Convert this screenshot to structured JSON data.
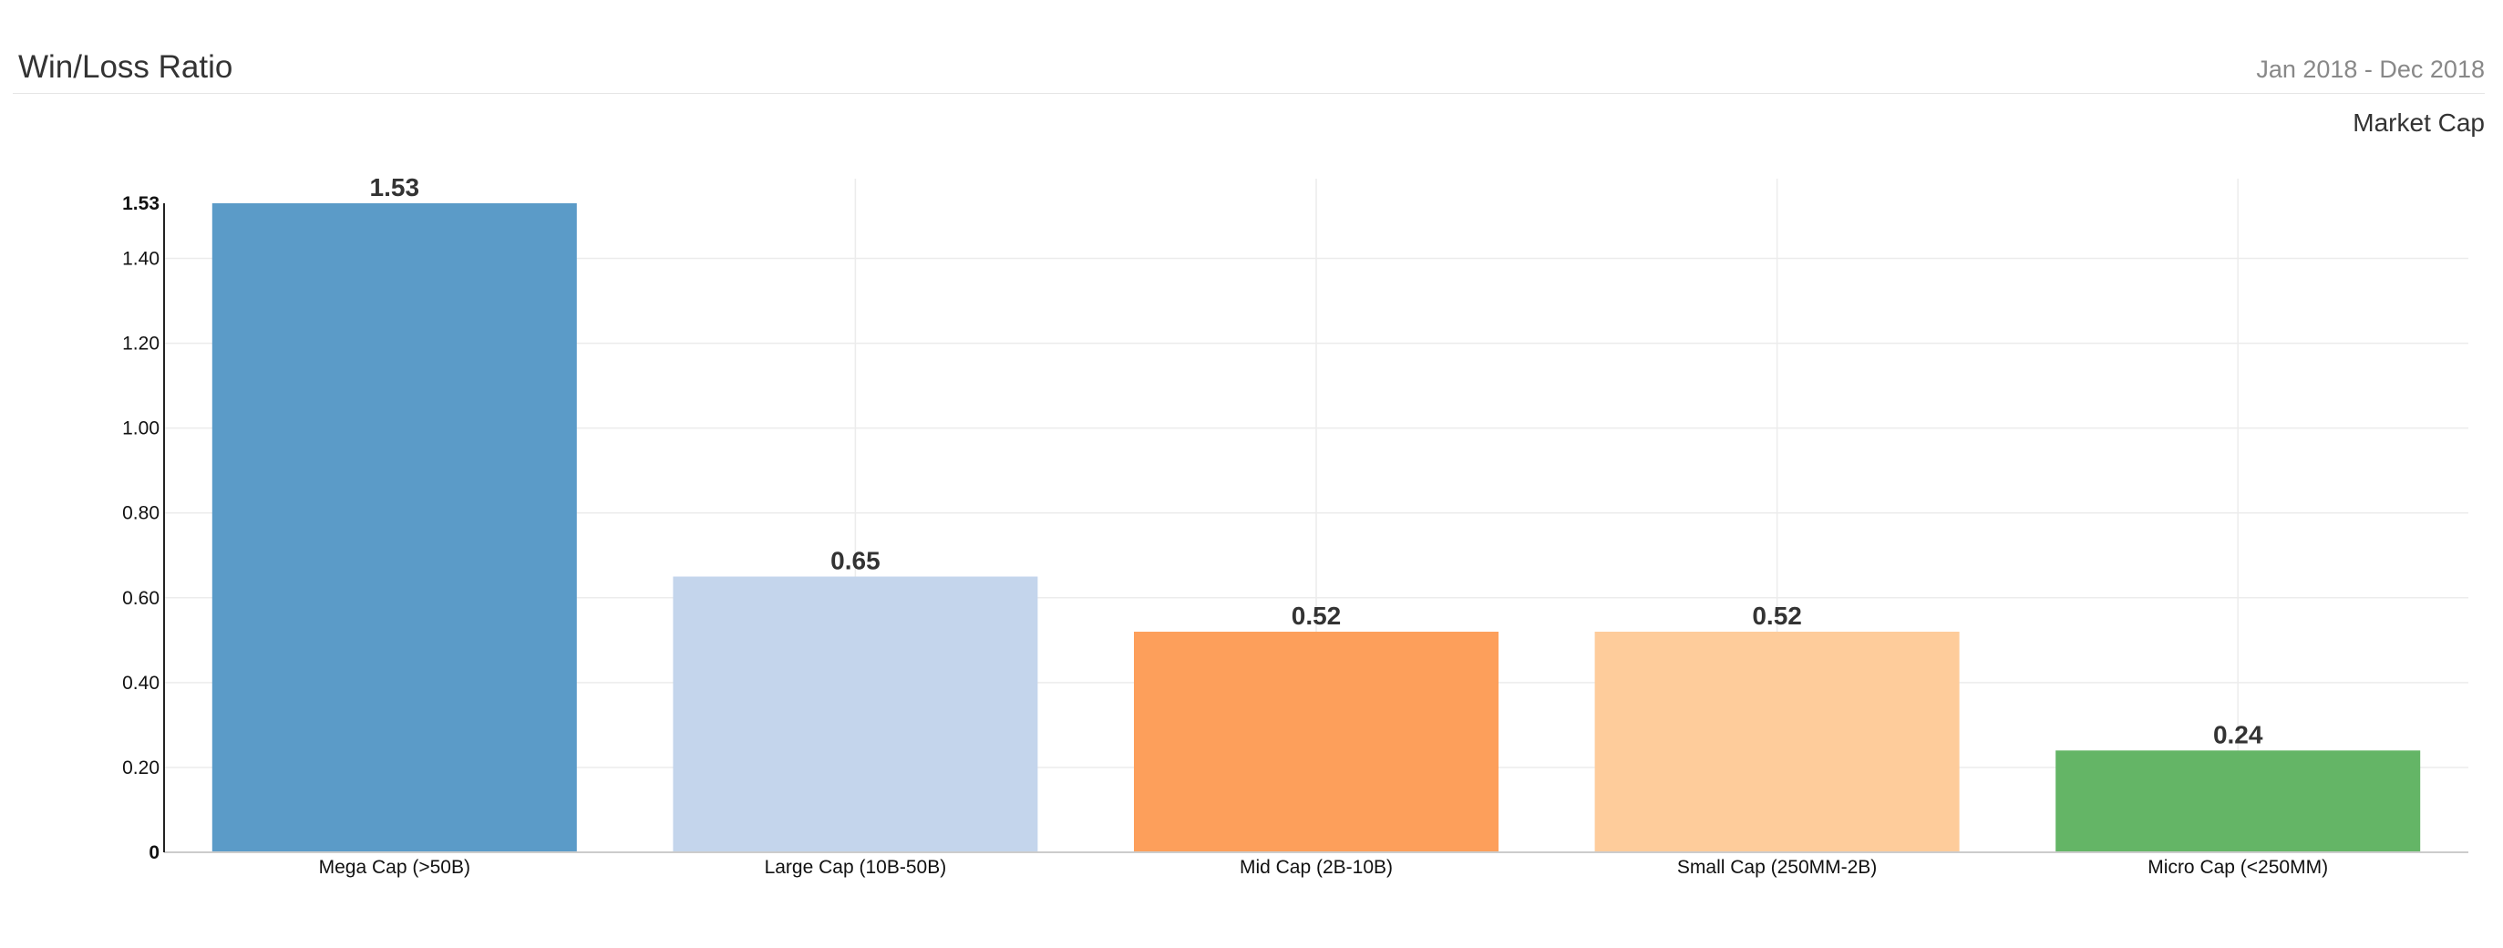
{
  "header": {
    "title": "Win/Loss Ratio",
    "date_range": "Jan 2018 - Dec 2018",
    "subtitle": "Market Cap"
  },
  "colors": {
    "bars": [
      "#5b9bc8",
      "#c4d5ec",
      "#fd9f5b",
      "#fecc9b",
      "#64b566"
    ],
    "grid": "#ececec",
    "axis": "#333333",
    "text": "#333333"
  },
  "chart_data": {
    "type": "bar",
    "title": "Win/Loss Ratio",
    "categories": [
      "Mega Cap (>50B)",
      "Large Cap (10B-50B)",
      "Mid Cap (2B-10B)",
      "Small Cap (250MM-2B)",
      "Micro Cap (<250MM)"
    ],
    "values": [
      1.53,
      0.65,
      0.52,
      0.52,
      0.24
    ],
    "value_labels": [
      "1.53",
      "0.65",
      "0.52",
      "0.52",
      "0.24"
    ],
    "yticks": [
      "0",
      "0.20",
      "0.40",
      "0.60",
      "0.80",
      "1.00",
      "1.20",
      "1.40",
      "1.53"
    ],
    "ylim": [
      0,
      1.53
    ],
    "grid": true,
    "legend": "none"
  }
}
